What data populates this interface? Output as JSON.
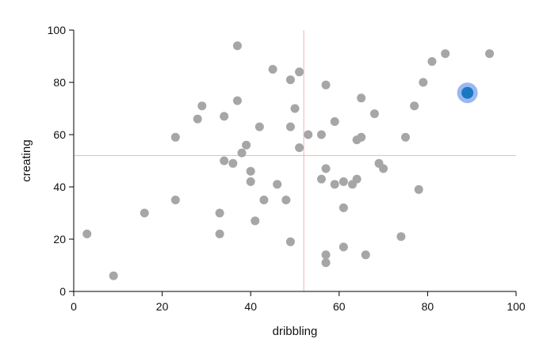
{
  "chart_data": {
    "type": "scatter",
    "title": "",
    "xlabel": "dribbling",
    "ylabel": "creating",
    "xlim": [
      0,
      100
    ],
    "ylim": [
      0,
      100
    ],
    "xticks": [
      "0",
      "20",
      "40",
      "60",
      "80",
      "100"
    ],
    "yticks": [
      "0",
      "20",
      "40",
      "60",
      "80",
      "100"
    ],
    "grid": false,
    "reference_lines": {
      "x": 52,
      "y": 52
    },
    "colors": {
      "point": "#a6a6a6",
      "reference": "#f2b3b3",
      "highlight_fill": "#1a78c2",
      "highlight_ring": "#8aaaf0"
    },
    "points": [
      {
        "x": 3,
        "y": 22
      },
      {
        "x": 9,
        "y": 6
      },
      {
        "x": 16,
        "y": 30
      },
      {
        "x": 23,
        "y": 35
      },
      {
        "x": 23,
        "y": 59
      },
      {
        "x": 28,
        "y": 66
      },
      {
        "x": 29,
        "y": 71
      },
      {
        "x": 33,
        "y": 30
      },
      {
        "x": 33,
        "y": 22
      },
      {
        "x": 34,
        "y": 67
      },
      {
        "x": 34,
        "y": 50
      },
      {
        "x": 36,
        "y": 49
      },
      {
        "x": 37,
        "y": 94
      },
      {
        "x": 37,
        "y": 73
      },
      {
        "x": 38,
        "y": 53
      },
      {
        "x": 39,
        "y": 56
      },
      {
        "x": 40,
        "y": 46
      },
      {
        "x": 40,
        "y": 42
      },
      {
        "x": 41,
        "y": 27
      },
      {
        "x": 42,
        "y": 63
      },
      {
        "x": 43,
        "y": 35
      },
      {
        "x": 45,
        "y": 85
      },
      {
        "x": 46,
        "y": 41
      },
      {
        "x": 48,
        "y": 35
      },
      {
        "x": 49,
        "y": 81
      },
      {
        "x": 49,
        "y": 63
      },
      {
        "x": 49,
        "y": 19
      },
      {
        "x": 50,
        "y": 70
      },
      {
        "x": 51,
        "y": 84
      },
      {
        "x": 51,
        "y": 55
      },
      {
        "x": 53,
        "y": 60
      },
      {
        "x": 56,
        "y": 60
      },
      {
        "x": 56,
        "y": 43
      },
      {
        "x": 57,
        "y": 79
      },
      {
        "x": 57,
        "y": 47
      },
      {
        "x": 57,
        "y": 14
      },
      {
        "x": 57,
        "y": 11
      },
      {
        "x": 59,
        "y": 65
      },
      {
        "x": 59,
        "y": 41
      },
      {
        "x": 61,
        "y": 42
      },
      {
        "x": 61,
        "y": 32
      },
      {
        "x": 61,
        "y": 17
      },
      {
        "x": 63,
        "y": 41
      },
      {
        "x": 64,
        "y": 58
      },
      {
        "x": 64,
        "y": 43
      },
      {
        "x": 65,
        "y": 74
      },
      {
        "x": 65,
        "y": 59
      },
      {
        "x": 66,
        "y": 14
      },
      {
        "x": 68,
        "y": 68
      },
      {
        "x": 69,
        "y": 49
      },
      {
        "x": 70,
        "y": 47
      },
      {
        "x": 74,
        "y": 21
      },
      {
        "x": 75,
        "y": 59
      },
      {
        "x": 77,
        "y": 71
      },
      {
        "x": 78,
        "y": 39
      },
      {
        "x": 79,
        "y": 80
      },
      {
        "x": 81,
        "y": 88
      },
      {
        "x": 84,
        "y": 91
      },
      {
        "x": 94,
        "y": 91
      }
    ],
    "highlight": {
      "x": 89,
      "y": 76
    }
  }
}
